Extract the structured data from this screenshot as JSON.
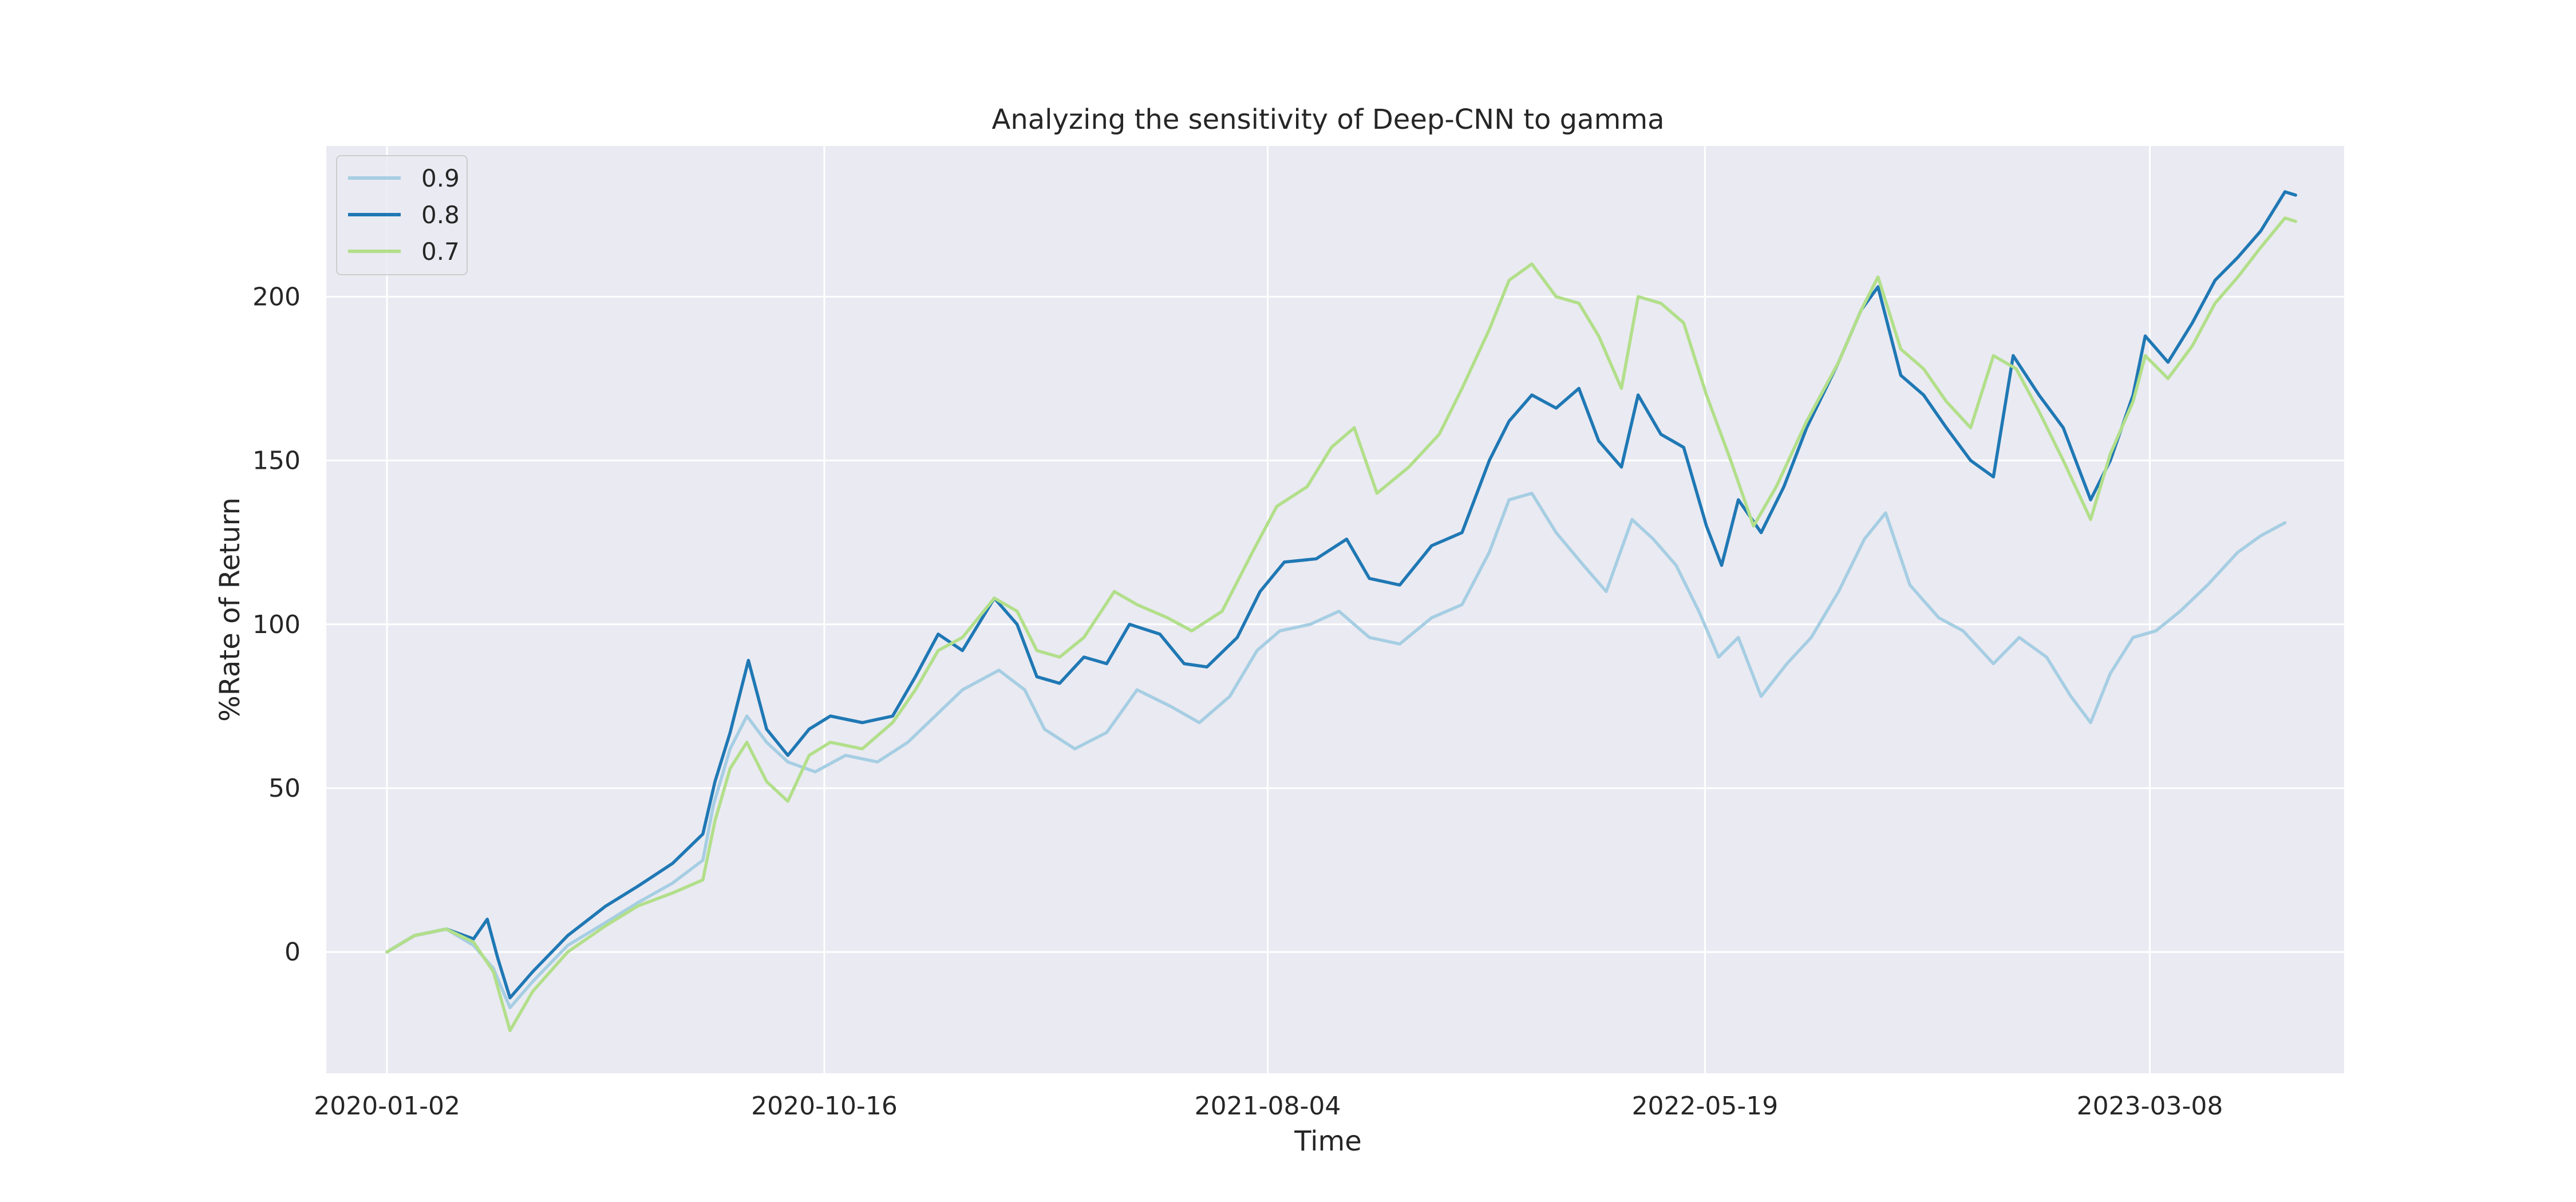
{
  "chart_data": {
    "type": "line",
    "title": "Analyzing the sensitivity of Deep-CNN to gamma",
    "xlabel": "Time",
    "ylabel": "%Rate of Return",
    "x_range": [
      "2019-11-23",
      "2023-07-14"
    ],
    "ylim": [
      -37,
      246
    ],
    "grid": true,
    "legend_position": "top-left",
    "xticks": [
      "2020-01-02",
      "2020-10-16",
      "2021-08-04",
      "2022-05-19",
      "2023-03-08"
    ],
    "yticks": [
      0,
      50,
      100,
      150,
      200
    ],
    "series": [
      {
        "name": "0.9",
        "color": "#a6cee3",
        "points": [
          [
            "2020-01-02",
            0
          ],
          [
            "2020-01-20",
            5
          ],
          [
            "2020-02-10",
            7
          ],
          [
            "2020-02-28",
            2
          ],
          [
            "2020-03-12",
            -5
          ],
          [
            "2020-03-23",
            -17
          ],
          [
            "2020-04-07",
            -9
          ],
          [
            "2020-04-30",
            2
          ],
          [
            "2020-05-25",
            9
          ],
          [
            "2020-06-15",
            15
          ],
          [
            "2020-07-08",
            21
          ],
          [
            "2020-07-28",
            28
          ],
          [
            "2020-08-04",
            45
          ],
          [
            "2020-08-15",
            62
          ],
          [
            "2020-08-26",
            72
          ],
          [
            "2020-09-08",
            64
          ],
          [
            "2020-09-22",
            58
          ],
          [
            "2020-10-10",
            55
          ],
          [
            "2020-10-30",
            60
          ],
          [
            "2020-11-20",
            58
          ],
          [
            "2020-12-10",
            64
          ],
          [
            "2020-12-28",
            72
          ],
          [
            "2021-01-15",
            80
          ],
          [
            "2021-02-08",
            86
          ],
          [
            "2021-02-25",
            80
          ],
          [
            "2021-03-10",
            68
          ],
          [
            "2021-03-30",
            62
          ],
          [
            "2021-04-20",
            67
          ],
          [
            "2021-05-10",
            80
          ],
          [
            "2021-06-01",
            75
          ],
          [
            "2021-06-20",
            70
          ],
          [
            "2021-07-10",
            78
          ],
          [
            "2021-07-28",
            92
          ],
          [
            "2021-08-12",
            98
          ],
          [
            "2021-09-01",
            100
          ],
          [
            "2021-09-20",
            104
          ],
          [
            "2021-10-10",
            96
          ],
          [
            "2021-10-30",
            94
          ],
          [
            "2021-11-20",
            102
          ],
          [
            "2021-12-10",
            106
          ],
          [
            "2021-12-28",
            122
          ],
          [
            "2022-01-10",
            138
          ],
          [
            "2022-01-25",
            140
          ],
          [
            "2022-02-10",
            128
          ],
          [
            "2022-02-28",
            118
          ],
          [
            "2022-03-15",
            110
          ],
          [
            "2022-04-01",
            132
          ],
          [
            "2022-04-15",
            126
          ],
          [
            "2022-04-30",
            118
          ],
          [
            "2022-05-15",
            104
          ],
          [
            "2022-05-28",
            90
          ],
          [
            "2022-06-10",
            96
          ],
          [
            "2022-06-25",
            78
          ],
          [
            "2022-07-12",
            88
          ],
          [
            "2022-07-28",
            96
          ],
          [
            "2022-08-15",
            110
          ],
          [
            "2022-09-01",
            126
          ],
          [
            "2022-09-15",
            134
          ],
          [
            "2022-10-01",
            112
          ],
          [
            "2022-10-20",
            102
          ],
          [
            "2022-11-05",
            98
          ],
          [
            "2022-11-25",
            88
          ],
          [
            "2022-12-12",
            96
          ],
          [
            "2022-12-30",
            90
          ],
          [
            "2023-01-15",
            78
          ],
          [
            "2023-01-28",
            70
          ],
          [
            "2023-02-10",
            85
          ],
          [
            "2023-02-25",
            96
          ],
          [
            "2023-03-12",
            98
          ],
          [
            "2023-03-28",
            104
          ],
          [
            "2023-04-15",
            112
          ],
          [
            "2023-05-05",
            122
          ],
          [
            "2023-05-20",
            127
          ],
          [
            "2023-06-05",
            131
          ]
        ]
      },
      {
        "name": "0.8",
        "color": "#1f78b4",
        "points": [
          [
            "2020-01-02",
            0
          ],
          [
            "2020-01-20",
            5
          ],
          [
            "2020-02-10",
            7
          ],
          [
            "2020-02-28",
            4
          ],
          [
            "2020-03-08",
            10
          ],
          [
            "2020-03-15",
            -2
          ],
          [
            "2020-03-23",
            -14
          ],
          [
            "2020-04-07",
            -6
          ],
          [
            "2020-04-30",
            5
          ],
          [
            "2020-05-25",
            14
          ],
          [
            "2020-06-15",
            20
          ],
          [
            "2020-07-08",
            27
          ],
          [
            "2020-07-28",
            36
          ],
          [
            "2020-08-05",
            52
          ],
          [
            "2020-08-15",
            67
          ],
          [
            "2020-08-27",
            89
          ],
          [
            "2020-09-08",
            68
          ],
          [
            "2020-09-22",
            60
          ],
          [
            "2020-10-06",
            68
          ],
          [
            "2020-10-20",
            72
          ],
          [
            "2020-11-10",
            70
          ],
          [
            "2020-11-30",
            72
          ],
          [
            "2020-12-15",
            84
          ],
          [
            "2020-12-30",
            97
          ],
          [
            "2021-01-15",
            92
          ],
          [
            "2021-02-05",
            108
          ],
          [
            "2021-02-20",
            100
          ],
          [
            "2021-03-05",
            84
          ],
          [
            "2021-03-20",
            82
          ],
          [
            "2021-04-05",
            90
          ],
          [
            "2021-04-20",
            88
          ],
          [
            "2021-05-05",
            100
          ],
          [
            "2021-05-25",
            97
          ],
          [
            "2021-06-10",
            88
          ],
          [
            "2021-06-25",
            87
          ],
          [
            "2021-07-15",
            96
          ],
          [
            "2021-07-30",
            110
          ],
          [
            "2021-08-15",
            119
          ],
          [
            "2021-09-05",
            120
          ],
          [
            "2021-09-25",
            126
          ],
          [
            "2021-10-10",
            114
          ],
          [
            "2021-10-30",
            112
          ],
          [
            "2021-11-20",
            124
          ],
          [
            "2021-12-10",
            128
          ],
          [
            "2021-12-28",
            150
          ],
          [
            "2022-01-10",
            162
          ],
          [
            "2022-01-25",
            170
          ],
          [
            "2022-02-10",
            166
          ],
          [
            "2022-02-25",
            172
          ],
          [
            "2022-03-10",
            156
          ],
          [
            "2022-03-25",
            148
          ],
          [
            "2022-04-05",
            170
          ],
          [
            "2022-04-20",
            158
          ],
          [
            "2022-05-05",
            154
          ],
          [
            "2022-05-20",
            130
          ],
          [
            "2022-05-30",
            118
          ],
          [
            "2022-06-10",
            138
          ],
          [
            "2022-06-25",
            128
          ],
          [
            "2022-07-10",
            142
          ],
          [
            "2022-07-25",
            160
          ],
          [
            "2022-08-15",
            180
          ],
          [
            "2022-08-30",
            196
          ],
          [
            "2022-09-10",
            203
          ],
          [
            "2022-09-25",
            176
          ],
          [
            "2022-10-10",
            170
          ],
          [
            "2022-10-25",
            160
          ],
          [
            "2022-11-10",
            150
          ],
          [
            "2022-11-25",
            145
          ],
          [
            "2022-12-08",
            182
          ],
          [
            "2022-12-25",
            170
          ],
          [
            "2023-01-10",
            160
          ],
          [
            "2023-01-28",
            138
          ],
          [
            "2023-02-10",
            150
          ],
          [
            "2023-02-25",
            170
          ],
          [
            "2023-03-05",
            188
          ],
          [
            "2023-03-20",
            180
          ],
          [
            "2023-04-05",
            192
          ],
          [
            "2023-04-20",
            205
          ],
          [
            "2023-05-05",
            212
          ],
          [
            "2023-05-20",
            220
          ],
          [
            "2023-06-05",
            232
          ],
          [
            "2023-06-12",
            231
          ]
        ]
      },
      {
        "name": "0.7",
        "color": "#b2df8a",
        "points": [
          [
            "2020-01-02",
            0
          ],
          [
            "2020-01-20",
            5
          ],
          [
            "2020-02-10",
            7
          ],
          [
            "2020-02-28",
            3
          ],
          [
            "2020-03-12",
            -6
          ],
          [
            "2020-03-23",
            -24
          ],
          [
            "2020-04-07",
            -12
          ],
          [
            "2020-04-30",
            0
          ],
          [
            "2020-05-25",
            8
          ],
          [
            "2020-06-15",
            14
          ],
          [
            "2020-07-08",
            18
          ],
          [
            "2020-07-28",
            22
          ],
          [
            "2020-08-05",
            40
          ],
          [
            "2020-08-15",
            56
          ],
          [
            "2020-08-26",
            64
          ],
          [
            "2020-09-08",
            52
          ],
          [
            "2020-09-22",
            46
          ],
          [
            "2020-10-06",
            60
          ],
          [
            "2020-10-20",
            64
          ],
          [
            "2020-11-10",
            62
          ],
          [
            "2020-11-30",
            70
          ],
          [
            "2020-12-15",
            80
          ],
          [
            "2020-12-30",
            92
          ],
          [
            "2021-01-15",
            96
          ],
          [
            "2021-02-05",
            108
          ],
          [
            "2021-02-20",
            104
          ],
          [
            "2021-03-05",
            92
          ],
          [
            "2021-03-20",
            90
          ],
          [
            "2021-04-05",
            96
          ],
          [
            "2021-04-25",
            110
          ],
          [
            "2021-05-10",
            106
          ],
          [
            "2021-05-30",
            102
          ],
          [
            "2021-06-15",
            98
          ],
          [
            "2021-07-05",
            104
          ],
          [
            "2021-07-25",
            122
          ],
          [
            "2021-08-10",
            136
          ],
          [
            "2021-08-30",
            142
          ],
          [
            "2021-09-15",
            154
          ],
          [
            "2021-09-30",
            160
          ],
          [
            "2021-10-15",
            140
          ],
          [
            "2021-11-05",
            148
          ],
          [
            "2021-11-25",
            158
          ],
          [
            "2021-12-10",
            172
          ],
          [
            "2021-12-28",
            190
          ],
          [
            "2022-01-10",
            205
          ],
          [
            "2022-01-25",
            210
          ],
          [
            "2022-02-10",
            200
          ],
          [
            "2022-02-25",
            198
          ],
          [
            "2022-03-10",
            188
          ],
          [
            "2022-03-25",
            172
          ],
          [
            "2022-04-05",
            200
          ],
          [
            "2022-04-20",
            198
          ],
          [
            "2022-05-05",
            192
          ],
          [
            "2022-05-20",
            170
          ],
          [
            "2022-06-05",
            150
          ],
          [
            "2022-06-20",
            130
          ],
          [
            "2022-07-05",
            142
          ],
          [
            "2022-07-25",
            162
          ],
          [
            "2022-08-15",
            180
          ],
          [
            "2022-08-30",
            196
          ],
          [
            "2022-09-10",
            206
          ],
          [
            "2022-09-25",
            184
          ],
          [
            "2022-10-10",
            178
          ],
          [
            "2022-10-25",
            168
          ],
          [
            "2022-11-10",
            160
          ],
          [
            "2022-11-25",
            182
          ],
          [
            "2022-12-10",
            178
          ],
          [
            "2022-12-25",
            165
          ],
          [
            "2023-01-10",
            150
          ],
          [
            "2023-01-28",
            132
          ],
          [
            "2023-02-10",
            152
          ],
          [
            "2023-02-25",
            168
          ],
          [
            "2023-03-05",
            182
          ],
          [
            "2023-03-20",
            175
          ],
          [
            "2023-04-05",
            185
          ],
          [
            "2023-04-20",
            198
          ],
          [
            "2023-05-05",
            206
          ],
          [
            "2023-05-20",
            215
          ],
          [
            "2023-06-05",
            224
          ],
          [
            "2023-06-12",
            223
          ]
        ]
      }
    ]
  }
}
